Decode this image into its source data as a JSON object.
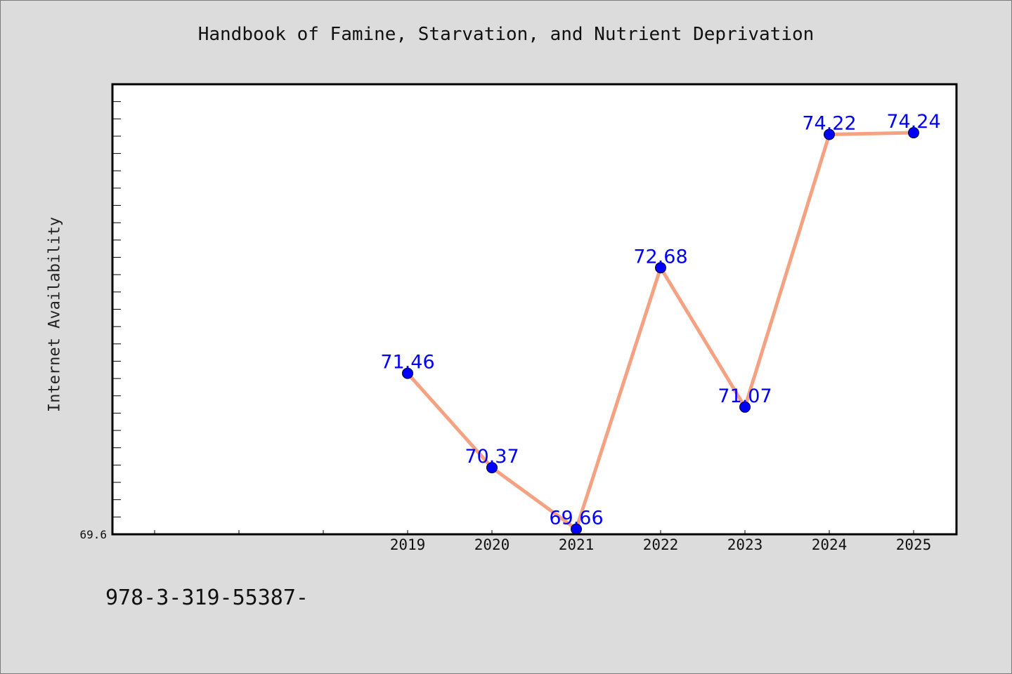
{
  "chart_data": {
    "type": "line",
    "title": "Handbook of Famine, Starvation, and Nutrient Deprivation",
    "ylabel": "Internet Availability",
    "xlabel": "",
    "categories": [
      "2019",
      "2020",
      "2021",
      "2022",
      "2023",
      "2024",
      "2025"
    ],
    "series": [
      {
        "values": [
          71.46,
          70.37,
          69.66,
          72.68,
          71.07,
          74.22,
          74.24
        ]
      }
    ],
    "data_labels": [
      "71.46",
      "70.37",
      "69.66",
      "72.68",
      "71.07",
      "74.22",
      "74.24"
    ],
    "y_tick_labels": [
      "69.6"
    ],
    "ylim": [
      69.6,
      74.8
    ],
    "grid": false,
    "line_color": "#f5a282",
    "marker_color": "#0000ff",
    "label_color": "#0000ff"
  },
  "footer": {
    "text": "978-3-319-55387-"
  }
}
